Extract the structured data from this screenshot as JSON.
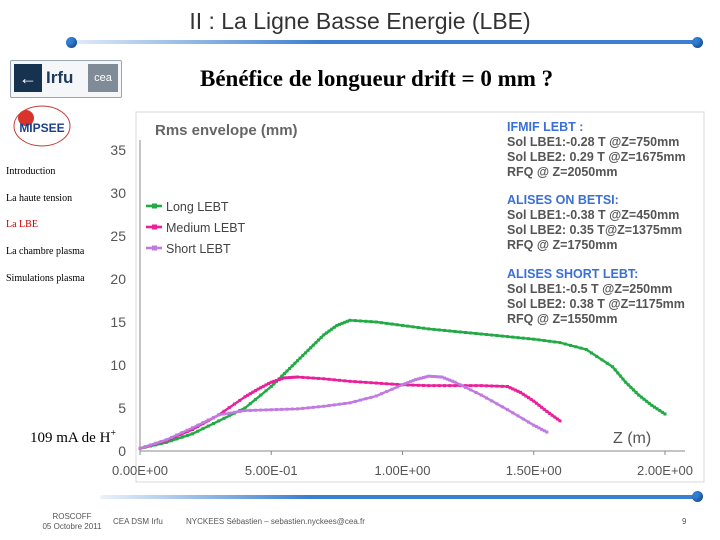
{
  "slide": {
    "title": "II : La Ligne Basse Energie (LBE)",
    "subtitle": "Bénéfice de longueur drift = 0 mm ?"
  },
  "logos": {
    "irfu": "Irfu",
    "cea": "cea",
    "mipsee": "MIPSEE"
  },
  "nav": {
    "items": [
      {
        "label": "Introduction",
        "active": false
      },
      {
        "label": "La haute tension",
        "active": false
      },
      {
        "label": "La LBE",
        "active": true
      },
      {
        "label": "La chambre plasma",
        "active": false
      },
      {
        "label": "Simulations plasma",
        "active": false
      }
    ]
  },
  "annotation": {
    "current_text": "109 mA de H",
    "current_sup": "+"
  },
  "footer": {
    "location": "ROSCOFF",
    "date": "05 Octobre 2011",
    "org": "CEA DSM Irfu",
    "author": "NYCKEES Sébastien – sebastien.nyckees@cea.fr",
    "page": "9"
  },
  "colors": {
    "rule_blue": "#3a7fd0",
    "long": "#22aa44",
    "medium": "#e8219a",
    "short": "#c07ae0",
    "info_blue": "#3a6fd6",
    "axis_text": "#555555",
    "title_gray": "#666666"
  },
  "chart_data": {
    "type": "line",
    "title": "Rms envelope (mm)",
    "xlabel": "Z (m)",
    "ylabel": "",
    "xlim": [
      0,
      2.0
    ],
    "ylim": [
      0,
      35
    ],
    "xticks": [
      {
        "value": 0,
        "label": "0.00E+00"
      },
      {
        "value": 0.5,
        "label": "5.00E-01"
      },
      {
        "value": 1.0,
        "label": "1.00E+00"
      },
      {
        "value": 1.5,
        "label": "1.50E+00"
      },
      {
        "value": 2.0,
        "label": "2.00E+00"
      }
    ],
    "yticks": [
      0,
      5,
      10,
      15,
      20,
      25,
      30,
      35
    ],
    "legend_position": "upper-left",
    "series": [
      {
        "name": "Long LEBT",
        "color": "#22aa44",
        "x": [
          0.0,
          0.1,
          0.2,
          0.3,
          0.4,
          0.5,
          0.55,
          0.6,
          0.65,
          0.7,
          0.75,
          0.8,
          0.9,
          1.0,
          1.1,
          1.2,
          1.3,
          1.4,
          1.5,
          1.6,
          1.7,
          1.8,
          1.85,
          1.9,
          1.95,
          2.0
        ],
        "y": [
          0.3,
          1.0,
          2.0,
          3.5,
          5.0,
          7.5,
          9.0,
          10.5,
          12.0,
          13.5,
          14.6,
          15.2,
          15.0,
          14.6,
          14.2,
          13.9,
          13.6,
          13.3,
          13.0,
          12.6,
          11.8,
          9.8,
          8.0,
          6.5,
          5.3,
          4.3
        ]
      },
      {
        "name": "Medium LEBT",
        "color": "#e8219a",
        "x": [
          0.0,
          0.1,
          0.2,
          0.3,
          0.4,
          0.45,
          0.5,
          0.55,
          0.6,
          0.7,
          0.8,
          0.9,
          1.0,
          1.1,
          1.2,
          1.3,
          1.4,
          1.45,
          1.5,
          1.55,
          1.6
        ],
        "y": [
          0.3,
          1.2,
          2.5,
          4.2,
          6.3,
          7.2,
          8.0,
          8.5,
          8.6,
          8.4,
          8.1,
          7.9,
          7.7,
          7.6,
          7.6,
          7.6,
          7.5,
          6.8,
          5.8,
          4.6,
          3.5
        ]
      },
      {
        "name": "Short LEBT",
        "color": "#c07ae0",
        "x": [
          0.0,
          0.1,
          0.2,
          0.3,
          0.4,
          0.5,
          0.6,
          0.7,
          0.8,
          0.9,
          1.0,
          1.05,
          1.1,
          1.15,
          1.2,
          1.3,
          1.4,
          1.5,
          1.55
        ],
        "y": [
          0.3,
          1.3,
          2.7,
          4.2,
          4.7,
          4.8,
          4.9,
          5.2,
          5.6,
          6.4,
          7.7,
          8.3,
          8.7,
          8.6,
          8.0,
          6.5,
          4.8,
          3.0,
          2.2
        ]
      }
    ],
    "info_blocks": [
      {
        "header": "IFMIF LEBT :",
        "lines": [
          "Sol LBE1:-0.28 T @Z=750mm",
          "Sol LBE2: 0.29 T @Z=1675mm",
          "RFQ @ Z=2050mm"
        ]
      },
      {
        "header": "ALISES ON BETSI:",
        "lines": [
          "Sol LBE1:-0.38 T @Z=450mm",
          "Sol LBE2: 0.35 T@Z=1375mm",
          "RFQ @ Z=1750mm"
        ]
      },
      {
        "header": "ALISES SHORT LEBT:",
        "lines": [
          "Sol LBE1:-0.5 T @Z=250mm",
          "Sol LBE2: 0.38 T @Z=1175mm",
          "RFQ @ Z=1550mm"
        ]
      }
    ]
  }
}
